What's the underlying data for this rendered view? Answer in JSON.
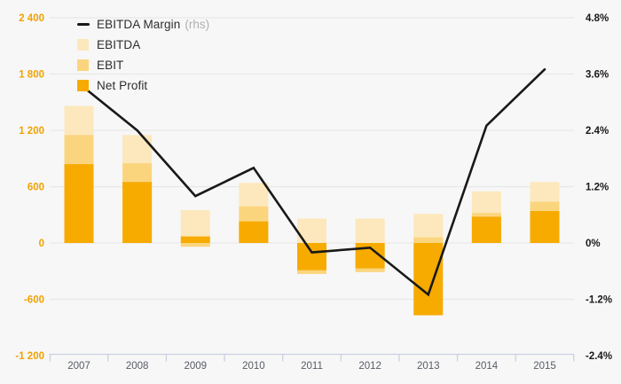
{
  "chart_data": {
    "type": "bar",
    "bar_mode": "overlap",
    "categories": [
      "2007",
      "2008",
      "2009",
      "2010",
      "2011",
      "2012",
      "2013",
      "2014",
      "2015"
    ],
    "series": [
      {
        "name": "EBITDA",
        "kind": "bar",
        "color": "#fce8bc",
        "values": [
          1460,
          1150,
          350,
          640,
          260,
          260,
          310,
          550,
          650
        ]
      },
      {
        "name": "EBIT",
        "kind": "bar",
        "color": "#fbd57e",
        "values": [
          1150,
          850,
          -40,
          390,
          -330,
          -310,
          60,
          320,
          440
        ]
      },
      {
        "name": "Net Profit",
        "kind": "bar",
        "color": "#f7ab00",
        "values": [
          840,
          650,
          70,
          230,
          -290,
          -270,
          -770,
          280,
          340
        ]
      },
      {
        "name": "EBITDA Margin",
        "kind": "line",
        "axis": "rhs",
        "color": "#191919",
        "values": [
          3.4,
          2.4,
          1.0,
          1.6,
          -0.2,
          -0.1,
          -1.1,
          2.5,
          3.7
        ]
      }
    ],
    "left_axis": {
      "tick_labels": [
        "2 400",
        "1 800",
        "1 200",
        "600",
        "0",
        "-600",
        "-1 200"
      ],
      "tick_values": [
        2400,
        1800,
        1200,
        600,
        0,
        -600,
        -1200
      ],
      "range": [
        -1200,
        2400
      ],
      "label_color": "#f0a202"
    },
    "right_axis": {
      "tick_labels": [
        "4.8%",
        "3.6%",
        "2.4%",
        "1.2%",
        "0%",
        "-1.2%",
        "-2.4%"
      ],
      "tick_values": [
        4.8,
        3.6,
        2.4,
        1.2,
        0,
        -1.2,
        -2.4
      ],
      "range": [
        -2.4,
        4.8
      ],
      "label_color": "#191919"
    },
    "grid": true,
    "legend_position": "top-left"
  },
  "legend": {
    "margin_label": "EBITDA Margin",
    "margin_suffix": "(rhs)",
    "ebitda_label": "EBITDA",
    "ebit_label": "EBIT",
    "net_profit_label": "Net Profit"
  },
  "colors": {
    "background": "#f7f7f7",
    "gridline": "#e8e8e8",
    "x_axis_line": "#c9d0e0",
    "year_label": "#575c66",
    "line_series": "#191919",
    "ebitda_fill": "#fce8bc",
    "ebit_fill": "#fbd57e",
    "net_profit_fill": "#f7ab00",
    "left_axis_text": "#f0a202",
    "right_axis_text": "#191919"
  }
}
